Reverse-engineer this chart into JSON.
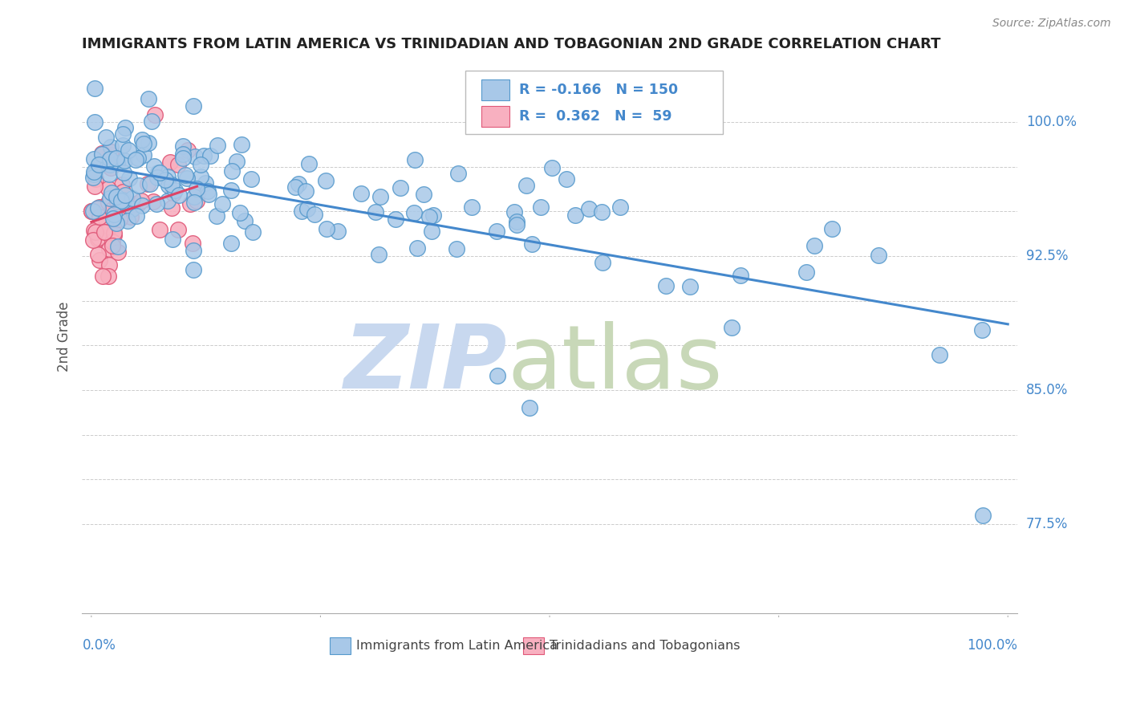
{
  "title": "IMMIGRANTS FROM LATIN AMERICA VS TRINIDADIAN AND TOBAGONIAN 2ND GRADE CORRELATION CHART",
  "source": "Source: ZipAtlas.com",
  "ylabel": "2nd Grade",
  "ylim": [
    0.725,
    1.035
  ],
  "xlim": [
    -0.01,
    1.01
  ],
  "r_blue": -0.166,
  "n_blue": 150,
  "r_pink": 0.362,
  "n_pink": 59,
  "blue_fill": "#a8c8e8",
  "blue_edge": "#5599cc",
  "pink_fill": "#f8b0c0",
  "pink_edge": "#e05878",
  "blue_line_color": "#4488cc",
  "pink_line_color": "#dd4466",
  "legend_label_blue": "Immigrants from Latin America",
  "legend_label_pink": "Trinidadians and Tobagonians",
  "watermark_zip_color": "#c8d8ef",
  "watermark_atlas_color": "#c8d8b8",
  "grid_color": "#cccccc",
  "title_color": "#222222",
  "axis_value_color": "#4488cc",
  "right_ytick_labels": {
    "1.000": "100.0%",
    "0.925": "92.5%",
    "0.850": "85.0%",
    "0.775": "77.5%"
  },
  "ytick_vals": [
    0.775,
    0.8,
    0.825,
    0.85,
    0.875,
    0.9,
    0.925,
    0.95,
    0.975,
    1.0
  ]
}
